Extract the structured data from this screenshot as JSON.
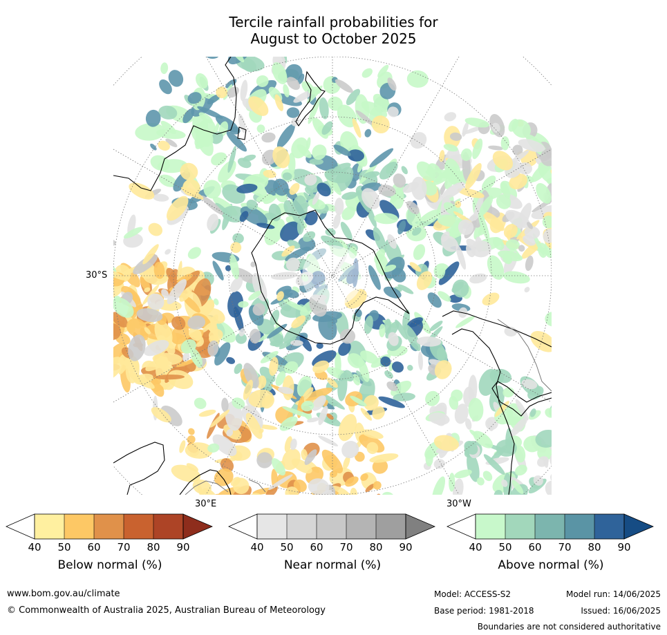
{
  "title_line1": "Tercile rainfall probabilities for",
  "title_line2": "August to October 2025",
  "map": {
    "labels": {
      "lat30s": "30°S",
      "lon30e": "30°E",
      "lon30w": "30°W"
    },
    "colors": {
      "land_outline": "#000000",
      "graticule": "#777777",
      "below_light": "#ffe99a",
      "below_mid": "#fdc865",
      "below_dark": "#e0914a",
      "above_light": "#c6f8c8",
      "above_mid": "#a1d7bc",
      "above_dark": "#5e96ac",
      "above_darkest": "#2f639a",
      "near_light": "#e2e2e2",
      "near_mid": "#cbcbcb"
    }
  },
  "colorbars": [
    {
      "name": "below",
      "title": "Below normal (%)",
      "ticks": [
        "40",
        "50",
        "60",
        "70",
        "80",
        "90"
      ],
      "colors": [
        "#ffffff",
        "#fff0a0",
        "#fdc865",
        "#e0914a",
        "#c9622f",
        "#ad4426",
        "#8e2d1c"
      ]
    },
    {
      "name": "near",
      "title": "Near normal (%)",
      "ticks": [
        "40",
        "50",
        "60",
        "70",
        "80",
        "90"
      ],
      "colors": [
        "#ffffff",
        "#e6e6e6",
        "#d6d6d6",
        "#c8c8c8",
        "#b4b4b4",
        "#9f9f9f",
        "#808080"
      ]
    },
    {
      "name": "above",
      "title": "Above normal (%)",
      "ticks": [
        "40",
        "50",
        "60",
        "70",
        "80",
        "90"
      ],
      "colors": [
        "#ffffff",
        "#c8f8cb",
        "#a2d7bb",
        "#7cb5ae",
        "#5a94a5",
        "#2f639a",
        "#164c84"
      ]
    }
  ],
  "footer": {
    "url": "www.bom.gov.au/climate",
    "copyright": "© Commonwealth of Australia 2025, Australian Bureau of Meteorology",
    "model": "Model: ACCESS-S2",
    "model_run": "Model run: 14/06/2025",
    "base_period": "Base period: 1981-2018",
    "issued": "Issued: 16/06/2025",
    "disclaimer": "Boundaries are not considered authoritative"
  }
}
